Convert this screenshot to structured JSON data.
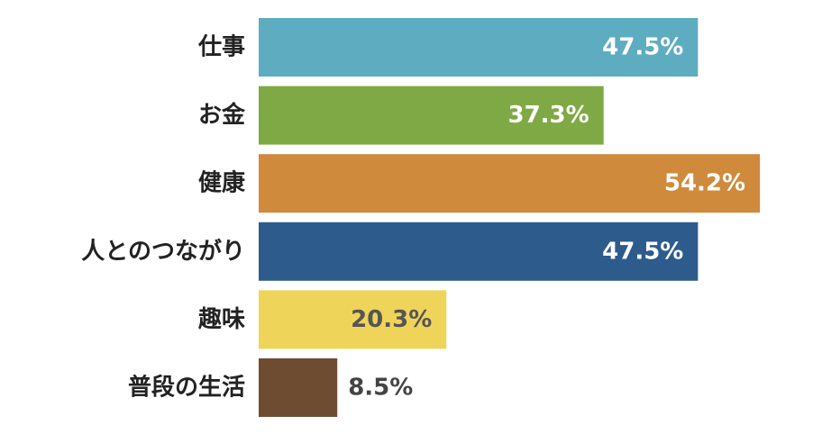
{
  "chart_data": {
    "type": "bar",
    "orientation": "horizontal",
    "title": "",
    "xlabel": "",
    "ylabel": "",
    "categories": [
      "仕事",
      "お金",
      "健康",
      "人とのつながり",
      "趣味",
      "普段の生活"
    ],
    "values": [
      47.5,
      37.3,
      54.2,
      47.5,
      20.3,
      8.5
    ],
    "value_labels": [
      "47.5%",
      "37.3%",
      "54.2%",
      "47.5%",
      "20.3%",
      "8.5%"
    ],
    "unit": "%",
    "xlim": [
      0,
      60
    ],
    "grid": false,
    "legend": "none",
    "bar_colors": [
      "#5EACC0",
      "#7FA944",
      "#CF8A3C",
      "#2D5B8C",
      "#EFD45A",
      "#6E4C32"
    ],
    "value_label_colors": [
      "#ffffff",
      "#ffffff",
      "#ffffff",
      "#ffffff",
      "#555555",
      "#444444"
    ]
  }
}
